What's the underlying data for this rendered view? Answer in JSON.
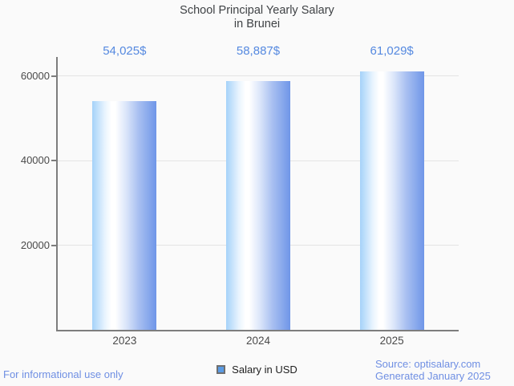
{
  "title": {
    "line1": "School Principal Yearly Salary",
    "line2": "in Brunei"
  },
  "legend": {
    "label": "Salary in USD"
  },
  "footer": {
    "left": "For informational use only",
    "source": "Source: optisalary.com",
    "generated": "Generated January 2025"
  },
  "colors": {
    "background": "#fafafa",
    "title_text": "#3f4245",
    "annotation_blue": "#5589e0",
    "footer_blue": "#6f8fe3",
    "axis": "#7d7d7d",
    "gridline": "#e4e4e4",
    "tick_text": "#4a4a4a",
    "bar_gradient": [
      "#a5d2f9",
      "#ffffff",
      "#6f96e8"
    ],
    "legend_swatch": "#5a9be4"
  },
  "chart_data": {
    "type": "bar",
    "title": "School Principal Yearly Salary in Brunei",
    "categories": [
      "2023",
      "2024",
      "2025"
    ],
    "series": [
      {
        "name": "Salary in USD",
        "values": [
          54025,
          58887,
          61029
        ]
      }
    ],
    "value_labels": [
      "54,025$",
      "58,887$",
      "61,029$"
    ],
    "xlabel": "",
    "ylabel": "",
    "ylim": [
      0,
      64500
    ],
    "yticks": [
      20000,
      40000,
      60000
    ],
    "ytick_labels": [
      "20000",
      "40000",
      "60000"
    ],
    "grid": true,
    "legend_position": "bottom"
  }
}
